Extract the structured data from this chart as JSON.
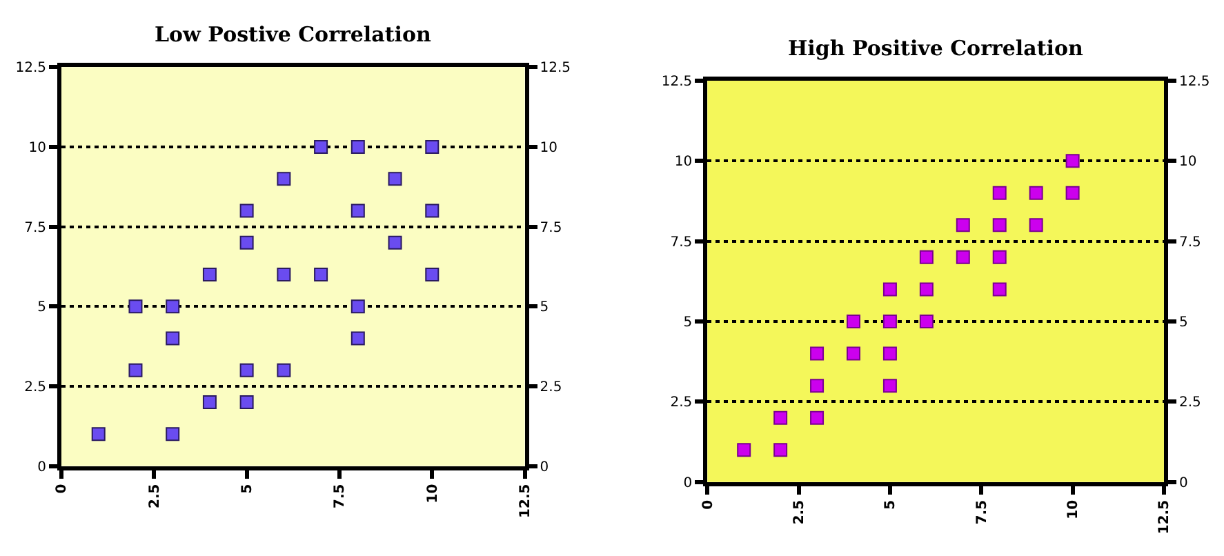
{
  "chart_data": [
    {
      "type": "scatter",
      "title": "Low Postive Correlation",
      "marker": "square",
      "grid": "y",
      "x": [
        1,
        2,
        2,
        3,
        3,
        3,
        4,
        4,
        5,
        5,
        5,
        5,
        6,
        6,
        6,
        7,
        7,
        8,
        8,
        8,
        8,
        9,
        9,
        10,
        10,
        10
      ],
      "series": [
        {
          "color": "#6a4cf0",
          "values": [
            1,
            3,
            5,
            5,
            4,
            1,
            2,
            6,
            8,
            7,
            3,
            2,
            9,
            6,
            3,
            10,
            6,
            10,
            8,
            5,
            4,
            9,
            7,
            10,
            8,
            6
          ]
        }
      ],
      "xlim": [
        0,
        12.5
      ],
      "xticks": [
        0,
        2.5,
        5,
        7.5,
        10,
        12.5
      ],
      "ylim": [
        0,
        12.5
      ],
      "yticks": [
        0,
        2.5,
        5,
        7.5,
        10,
        12.5
      ],
      "y2lim": [
        0,
        12.5
      ],
      "y2ticks": [
        0,
        2.5,
        5,
        7.5,
        10,
        12.5
      ]
    },
    {
      "type": "scatter",
      "title": "High Positive Correlation",
      "marker": "square",
      "grid": "y",
      "x": [
        1,
        2,
        2,
        3,
        3,
        3,
        4,
        4,
        5,
        5,
        5,
        5,
        6,
        6,
        6,
        7,
        7,
        8,
        8,
        8,
        8,
        9,
        9,
        10,
        10
      ],
      "series": [
        {
          "color": "#cc00ee",
          "values": [
            1,
            2,
            1,
            4,
            3,
            2,
            5,
            4,
            6,
            5,
            4,
            3,
            7,
            6,
            5,
            8,
            7,
            9,
            8,
            7,
            6,
            9,
            8,
            10,
            9
          ]
        }
      ],
      "xlim": [
        0,
        12.5
      ],
      "xticks": [
        0,
        2.5,
        5,
        7.5,
        10,
        12.5
      ],
      "ylim": [
        0,
        12.5
      ],
      "yticks": [
        0,
        2.5,
        5,
        7.5,
        10,
        12.5
      ],
      "y2lim": [
        0,
        12.5
      ],
      "y2ticks": [
        0,
        2.5,
        5,
        7.5,
        10,
        12.5
      ]
    }
  ]
}
